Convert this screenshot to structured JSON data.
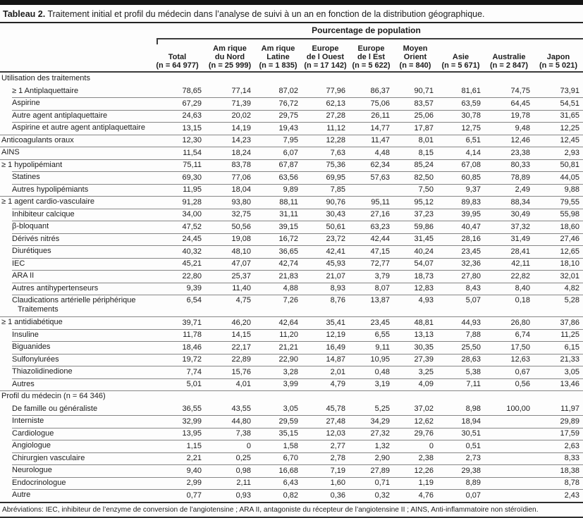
{
  "title": {
    "prefix": "Tableau 2.",
    "text": " Traitement initial et profil du médecin dans l’analyse de suivi à un an en fonction de la distribution géographique."
  },
  "table": {
    "spanner": "Pourcentage de population",
    "columns": [
      {
        "lines": [
          "Total",
          "(n = 64 977)"
        ]
      },
      {
        "lines": [
          "Am rique",
          "du Nord",
          "(n = 25 999)"
        ]
      },
      {
        "lines": [
          "Am rique",
          "Latine",
          "(n = 1 835)"
        ]
      },
      {
        "lines": [
          "Europe",
          "de l Ouest",
          "(n = 17 142)"
        ]
      },
      {
        "lines": [
          "Europe",
          "de l Est",
          "(n = 5 622)"
        ]
      },
      {
        "lines": [
          "Moyen",
          "Orient",
          "(n = 840)"
        ]
      },
      {
        "lines": [
          "Asie",
          "(n = 5 671)"
        ]
      },
      {
        "lines": [
          "Australie",
          "(n = 2 847)"
        ]
      },
      {
        "lines": [
          "Japon",
          "(n = 5 021)"
        ]
      }
    ],
    "rows": [
      {
        "label": "Utilisation des traitements",
        "type": "section",
        "sep": "none",
        "values": [
          "",
          "",
          "",
          "",
          "",
          "",
          "",
          "",
          ""
        ]
      },
      {
        "label": "≥ 1 Antiplaquettaire",
        "type": "sub",
        "sep": "none",
        "values": [
          "78,65",
          "77,14",
          "87,02",
          "77,96",
          "86,37",
          "90,71",
          "81,61",
          "74,75",
          "73,91"
        ]
      },
      {
        "label": "Aspirine",
        "type": "sub",
        "sep": "ind",
        "values": [
          "67,29",
          "71,39",
          "76,72",
          "62,13",
          "75,06",
          "83,57",
          "63,59",
          "64,45",
          "54,51"
        ]
      },
      {
        "label": "Autre agent antiplaquettaire",
        "type": "sub",
        "sep": "ind",
        "values": [
          "24,63",
          "20,02",
          "29,75",
          "27,28",
          "26,11",
          "25,06",
          "30,78",
          "19,78",
          "31,65"
        ]
      },
      {
        "label": "Aspirine et autre agent antiplaquettaire",
        "type": "sub",
        "sep": "ind",
        "values": [
          "13,15",
          "14,19",
          "19,43",
          "11,12",
          "14,77",
          "17,87",
          "12,75",
          "9,48",
          "12,25"
        ]
      },
      {
        "label": "Anticoagulants oraux",
        "type": "top",
        "sep": "full",
        "values": [
          "12,30",
          "14,23",
          "7,95",
          "12,28",
          "11,47",
          "8,01",
          "6,51",
          "12,46",
          "12,45"
        ]
      },
      {
        "label": "AINS",
        "type": "top",
        "sep": "full",
        "values": [
          "11,54",
          "18,24",
          "6,07",
          "7,63",
          "4,48",
          "8,15",
          "4,14",
          "23,38",
          "2,93"
        ]
      },
      {
        "label": "≥ 1 hypolipémiant",
        "type": "top",
        "sep": "full",
        "values": [
          "75,11",
          "83,78",
          "67,87",
          "75,36",
          "62,34",
          "85,24",
          "67,08",
          "80,33",
          "50,81"
        ]
      },
      {
        "label": "Statines",
        "type": "sub",
        "sep": "ind",
        "values": [
          "69,30",
          "77,06",
          "63,56",
          "69,95",
          "57,63",
          "82,50",
          "60,85",
          "78,89",
          "44,05"
        ]
      },
      {
        "label": "Autres hypolipémiants",
        "type": "sub",
        "sep": "ind",
        "values": [
          "11,95",
          "18,04",
          "9,89",
          "7,85",
          "",
          "7,50",
          "9,37",
          "2,49",
          "9,88"
        ]
      },
      {
        "label": "≥ 1 agent cardio-vasculaire",
        "type": "top",
        "sep": "full",
        "values": [
          "91,28",
          "93,80",
          "88,11",
          "90,76",
          "95,11",
          "95,12",
          "89,83",
          "88,34",
          "79,55"
        ]
      },
      {
        "label": "Inhibiteur calcique",
        "type": "sub",
        "sep": "ind",
        "values": [
          "34,00",
          "32,75",
          "31,11",
          "30,43",
          "27,16",
          "37,23",
          "39,95",
          "30,49",
          "55,98"
        ]
      },
      {
        "label": "β-bloquant",
        "type": "sub",
        "sep": "ind",
        "values": [
          "47,52",
          "50,56",
          "39,15",
          "50,61",
          "63,23",
          "59,86",
          "40,47",
          "37,32",
          "18,60"
        ]
      },
      {
        "label": "Dérivés nitrés",
        "type": "sub",
        "sep": "ind",
        "values": [
          "24,45",
          "19,08",
          "16,72",
          "23,72",
          "42,44",
          "31,45",
          "28,16",
          "31,49",
          "27,46"
        ]
      },
      {
        "label": "Diurétiques",
        "type": "sub",
        "sep": "ind",
        "values": [
          "40,32",
          "48,10",
          "36,65",
          "42,41",
          "47,15",
          "40,24",
          "23,45",
          "28,41",
          "12,65"
        ]
      },
      {
        "label": "IEC",
        "type": "sub",
        "sep": "ind",
        "values": [
          "45,21",
          "47,07",
          "42,74",
          "45,93",
          "72,77",
          "54,07",
          "32,36",
          "42,11",
          "18,10"
        ]
      },
      {
        "label": "ARA II",
        "type": "sub",
        "sep": "ind",
        "values": [
          "22,80",
          "25,37",
          "21,83",
          "21,07",
          "3,79",
          "18,73",
          "27,80",
          "22,82",
          "32,01"
        ]
      },
      {
        "label": "Autres antihypertenseurs",
        "type": "sub",
        "sep": "ind",
        "values": [
          "9,39",
          "11,40",
          "4,88",
          "8,93",
          "8,07",
          "12,83",
          "8,43",
          "8,40",
          "4,82"
        ]
      },
      {
        "label": "Claudications artérielle périphérique",
        "label2": "Traitements",
        "type": "sub",
        "sep": "ind",
        "values": [
          "6,54",
          "4,75",
          "7,26",
          "8,76",
          "13,87",
          "4,93",
          "5,07",
          "0,18",
          "5,28"
        ]
      },
      {
        "label": "≥ 1 antidiabétique",
        "type": "top",
        "sep": "full",
        "values": [
          "39,71",
          "46,20",
          "42,64",
          "35,41",
          "23,45",
          "48,81",
          "44,93",
          "26,80",
          "37,86"
        ]
      },
      {
        "label": "Insuline",
        "type": "sub",
        "sep": "ind",
        "values": [
          "11,78",
          "14,15",
          "11,20",
          "12,19",
          "6,55",
          "13,13",
          "7,88",
          "6,74",
          "11,25"
        ]
      },
      {
        "label": "Biguanides",
        "type": "sub",
        "sep": "ind",
        "values": [
          "18,46",
          "22,17",
          "21,21",
          "16,49",
          "9,11",
          "30,35",
          "25,50",
          "17,50",
          "6,15"
        ]
      },
      {
        "label": "Sulfonylurées",
        "type": "sub",
        "sep": "ind",
        "values": [
          "19,72",
          "22,89",
          "22,90",
          "14,87",
          "10,95",
          "27,39",
          "28,63",
          "12,63",
          "21,33"
        ]
      },
      {
        "label": "Thiazolidinedione",
        "type": "sub",
        "sep": "ind",
        "values": [
          "7,74",
          "15,76",
          "3,28",
          "2,01",
          "0,48",
          "3,25",
          "5,38",
          "0,67",
          "3,05"
        ]
      },
      {
        "label": "Autres",
        "type": "sub",
        "sep": "ind",
        "values": [
          "5,01",
          "4,01",
          "3,99",
          "4,79",
          "3,19",
          "4,09",
          "7,11",
          "0,56",
          "13,46"
        ]
      },
      {
        "label": "Profil du médecin (n = 64 346)",
        "type": "section",
        "sep": "full",
        "values": [
          "",
          "",
          "",
          "",
          "",
          "",
          "",
          "",
          ""
        ]
      },
      {
        "label": "De famille ou généraliste",
        "type": "sub",
        "sep": "none",
        "values": [
          "36,55",
          "43,55",
          "3,05",
          "45,78",
          "5,25",
          "37,02",
          "8,98",
          "100,00",
          "11,97"
        ]
      },
      {
        "label": "Interniste",
        "type": "sub",
        "sep": "ind",
        "values": [
          "32,99",
          "44,80",
          "29,59",
          "27,48",
          "34,29",
          "12,62",
          "18,94",
          "",
          "29,89"
        ]
      },
      {
        "label": "Cardiologue",
        "type": "sub",
        "sep": "ind",
        "values": [
          "13,95",
          "7,38",
          "35,15",
          "12,03",
          "27,32",
          "29,76",
          "30,51",
          "",
          "17,59"
        ]
      },
      {
        "label": "Angiologue",
        "type": "sub",
        "sep": "ind",
        "values": [
          "1,15",
          "0",
          "1,58",
          "2,77",
          "1,32",
          "0",
          "0,51",
          "",
          "2,63"
        ]
      },
      {
        "label": "Chirurgien vasculaire",
        "type": "sub",
        "sep": "ind",
        "values": [
          "2,21",
          "0,25",
          "6,70",
          "2,78",
          "2,90",
          "2,38",
          "2,73",
          "",
          "8,33"
        ]
      },
      {
        "label": "Neurologue",
        "type": "sub",
        "sep": "ind",
        "values": [
          "9,40",
          "0,98",
          "16,68",
          "7,19",
          "27,89",
          "12,26",
          "29,38",
          "",
          "18,38"
        ]
      },
      {
        "label": "Endocrinologue",
        "type": "sub",
        "sep": "ind",
        "values": [
          "2,99",
          "2,11",
          "6,43",
          "1,60",
          "0,71",
          "1,19",
          "8,89",
          "",
          "8,78"
        ]
      },
      {
        "label": "Autre",
        "type": "sub",
        "sep": "ind",
        "values": [
          "0,77",
          "0,93",
          "0,82",
          "0,36",
          "0,32",
          "4,76",
          "0,07",
          "",
          "2,43"
        ]
      }
    ],
    "footnote": "Abréviations: IEC, inhibiteur de l’enzyme de conversion de l’angiotensine ; ARA II, antagoniste du récepteur de l’angiotensine II ; AINS, Anti-inflammatoire non stéroïdien."
  }
}
